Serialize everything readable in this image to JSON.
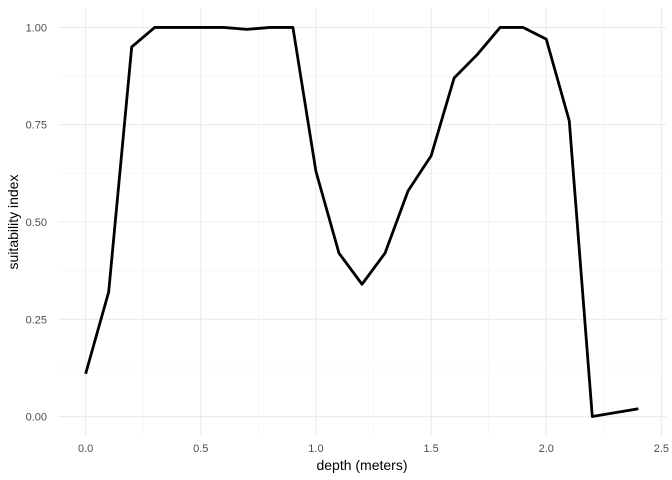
{
  "chart_data": {
    "type": "line",
    "title": "",
    "xlabel": "depth (meters)",
    "ylabel": "suitability index",
    "xlim": [
      -0.12,
      2.52
    ],
    "ylim": [
      -0.05,
      1.05
    ],
    "x_ticks": [
      0.0,
      0.5,
      1.0,
      1.5,
      2.0,
      2.5
    ],
    "x_tick_labels": [
      "0.0",
      "0.5",
      "1.0",
      "1.5",
      "2.0",
      "2.5"
    ],
    "x_minor_ticks": [
      0.25,
      0.75,
      1.25,
      1.75,
      2.25
    ],
    "y_ticks": [
      0.0,
      0.25,
      0.5,
      0.75,
      1.0
    ],
    "y_tick_labels": [
      "0.00",
      "0.25",
      "0.50",
      "0.75",
      "1.00"
    ],
    "y_minor_ticks": [
      0.125,
      0.375,
      0.625,
      0.875
    ],
    "grid": true,
    "legend": "none",
    "series": [
      {
        "color": "#000000",
        "x": [
          0.0,
          0.1,
          0.2,
          0.3,
          0.4,
          0.5,
          0.6,
          0.7,
          0.8,
          0.9,
          1.0,
          1.1,
          1.2,
          1.3,
          1.4,
          1.5,
          1.6,
          1.7,
          1.8,
          1.9,
          2.0,
          2.1,
          2.2,
          2.3,
          2.4
        ],
        "y": [
          0.11,
          0.32,
          0.95,
          1.0,
          1.0,
          1.0,
          1.0,
          0.995,
          1.0,
          1.0,
          0.63,
          0.42,
          0.34,
          0.42,
          0.58,
          0.67,
          0.87,
          0.93,
          1.0,
          1.0,
          0.97,
          0.76,
          0.0,
          0.01,
          0.02
        ]
      }
    ]
  }
}
